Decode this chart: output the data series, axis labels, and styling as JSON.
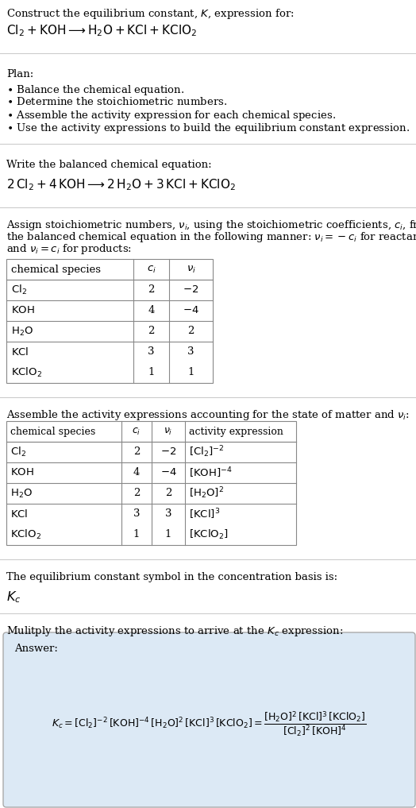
{
  "title_line1": "Construct the equilibrium constant, $K$, expression for:",
  "title_line2": "$\\mathrm{Cl_2 + KOH \\longrightarrow H_2O + KCl + KClO_2}$",
  "plan_header": "Plan:",
  "plan_items": [
    "$\\bullet$ Balance the chemical equation.",
    "$\\bullet$ Determine the stoichiometric numbers.",
    "$\\bullet$ Assemble the activity expression for each chemical species.",
    "$\\bullet$ Use the activity expressions to build the equilibrium constant expression."
  ],
  "balanced_header": "Write the balanced chemical equation:",
  "balanced_eq": "$2\\,\\mathrm{Cl_2} + 4\\,\\mathrm{KOH} \\longrightarrow 2\\,\\mathrm{H_2O} + 3\\,\\mathrm{KCl} + \\mathrm{KClO_2}$",
  "stoich_header_lines": [
    "Assign stoichiometric numbers, $\\nu_i$, using the stoichiometric coefficients, $c_i$, from",
    "the balanced chemical equation in the following manner: $\\nu_i = -c_i$ for reactants",
    "and $\\nu_i = c_i$ for products:"
  ],
  "table1_headers": [
    "chemical species",
    "$c_i$",
    "$\\nu_i$"
  ],
  "table1_rows": [
    [
      "$\\mathrm{Cl_2}$",
      "2",
      "$-2$"
    ],
    [
      "$\\mathrm{KOH}$",
      "4",
      "$-4$"
    ],
    [
      "$\\mathrm{H_2O}$",
      "2",
      "2"
    ],
    [
      "$\\mathrm{KCl}$",
      "3",
      "3"
    ],
    [
      "$\\mathrm{KClO_2}$",
      "1",
      "1"
    ]
  ],
  "activity_header": "Assemble the activity expressions accounting for the state of matter and $\\nu_i$:",
  "table2_headers": [
    "chemical species",
    "$c_i$",
    "$\\nu_i$",
    "activity expression"
  ],
  "table2_rows": [
    [
      "$\\mathrm{Cl_2}$",
      "2",
      "$-2$",
      "$[\\mathrm{Cl_2}]^{-2}$"
    ],
    [
      "$\\mathrm{KOH}$",
      "4",
      "$-4$",
      "$[\\mathrm{KOH}]^{-4}$"
    ],
    [
      "$\\mathrm{H_2O}$",
      "2",
      "2",
      "$[\\mathrm{H_2O}]^2$"
    ],
    [
      "$\\mathrm{KCl}$",
      "3",
      "3",
      "$[\\mathrm{KCl}]^3$"
    ],
    [
      "$\\mathrm{KClO_2}$",
      "1",
      "1",
      "$[\\mathrm{KClO_2}]$"
    ]
  ],
  "kc_symbol_text": "The equilibrium constant symbol in the concentration basis is:",
  "kc_symbol": "$K_c$",
  "multiply_header": "Mulitply the activity expressions to arrive at the $K_c$ expression:",
  "answer_label": "Answer:",
  "kc_full_expr": "$K_c = [\\mathrm{Cl_2}]^{-2}\\,[\\mathrm{KOH}]^{-4}\\,[\\mathrm{H_2O}]^2\\,[\\mathrm{KCl}]^3\\,[\\mathrm{KClO_2}] = \\dfrac{[\\mathrm{H_2O}]^2\\,[\\mathrm{KCl}]^3\\,[\\mathrm{KClO_2}]}{[\\mathrm{Cl_2}]^2\\,[\\mathrm{KOH}]^4}$",
  "bg_color": "#ffffff",
  "text_color": "#000000",
  "table_border_color": "#888888",
  "answer_box_facecolor": "#dce9f5",
  "answer_box_edgecolor": "#aaaaaa",
  "sep_color": "#cccccc",
  "sep_lw": 0.8,
  "font_size": 9.5,
  "fig_width": 5.24,
  "fig_height": 10.17,
  "dpi": 100
}
